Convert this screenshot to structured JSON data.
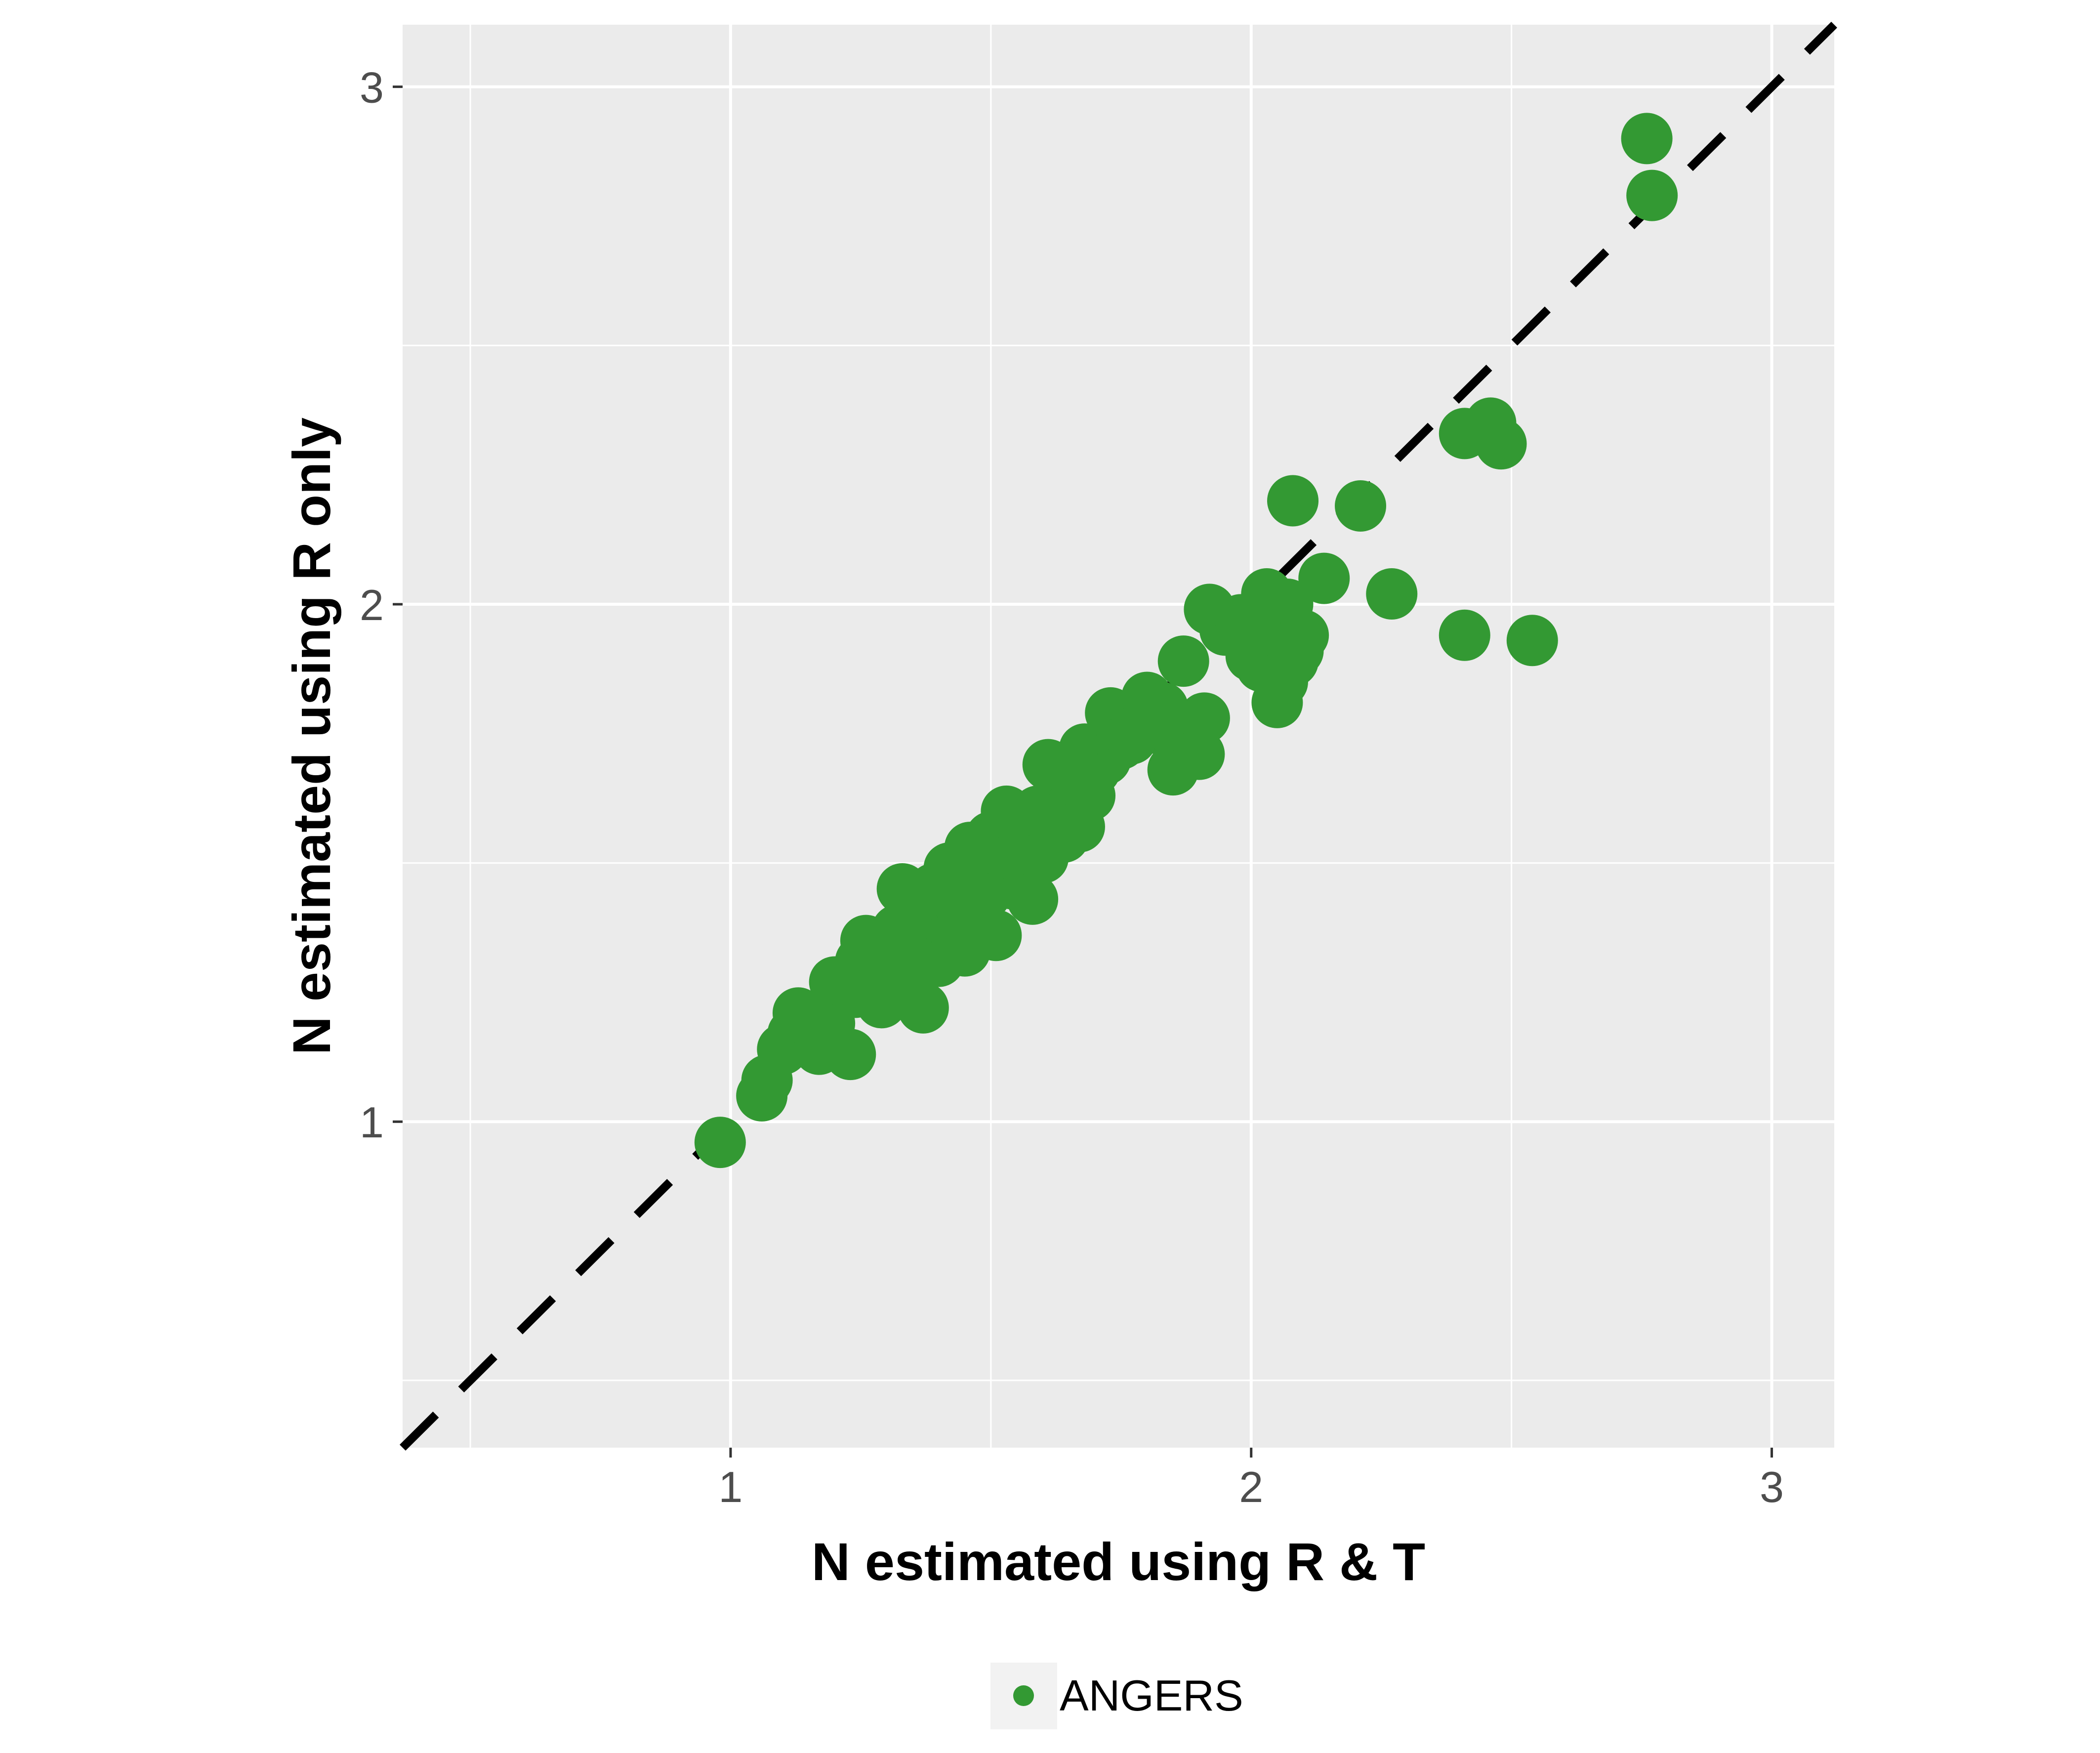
{
  "chart_data": {
    "type": "scatter",
    "title": "",
    "xlabel": "N estimated using R & T",
    "ylabel": "N estimated using R only",
    "xlim": [
      0.37,
      3.12
    ],
    "ylim": [
      0.37,
      3.12
    ],
    "x_ticks": [
      1,
      2,
      3
    ],
    "y_ticks": [
      1,
      2,
      3
    ],
    "grid": true,
    "reference_line": {
      "type": "identity",
      "style": "dashed",
      "color": "#000000"
    },
    "legend": {
      "position": "bottom",
      "entries": [
        "ANGERS"
      ]
    },
    "series": [
      {
        "name": "ANGERS",
        "color": "#339933",
        "points": [
          [
            0.98,
            0.96
          ],
          [
            1.06,
            1.05
          ],
          [
            1.07,
            1.08
          ],
          [
            1.1,
            1.14
          ],
          [
            1.12,
            1.17
          ],
          [
            1.13,
            1.21
          ],
          [
            1.17,
            1.14
          ],
          [
            1.19,
            1.19
          ],
          [
            1.2,
            1.27
          ],
          [
            1.23,
            1.13
          ],
          [
            1.24,
            1.25
          ],
          [
            1.25,
            1.31
          ],
          [
            1.26,
            1.35
          ],
          [
            1.28,
            1.29
          ],
          [
            1.29,
            1.23
          ],
          [
            1.3,
            1.33
          ],
          [
            1.31,
            1.27
          ],
          [
            1.32,
            1.37
          ],
          [
            1.33,
            1.45
          ],
          [
            1.34,
            1.3
          ],
          [
            1.35,
            1.4
          ],
          [
            1.36,
            1.44
          ],
          [
            1.37,
            1.22
          ],
          [
            1.38,
            1.35
          ],
          [
            1.39,
            1.45
          ],
          [
            1.4,
            1.31
          ],
          [
            1.41,
            1.39
          ],
          [
            1.42,
            1.49
          ],
          [
            1.43,
            1.37
          ],
          [
            1.44,
            1.42
          ],
          [
            1.45,
            1.33
          ],
          [
            1.46,
            1.53
          ],
          [
            1.47,
            1.4
          ],
          [
            1.48,
            1.47
          ],
          [
            1.49,
            1.44
          ],
          [
            1.5,
            1.55
          ],
          [
            1.51,
            1.36
          ],
          [
            1.52,
            1.49
          ],
          [
            1.53,
            1.6
          ],
          [
            1.54,
            1.46
          ],
          [
            1.55,
            1.53
          ],
          [
            1.56,
            1.57
          ],
          [
            1.57,
            1.49
          ],
          [
            1.58,
            1.43
          ],
          [
            1.59,
            1.6
          ],
          [
            1.6,
            1.51
          ],
          [
            1.61,
            1.69
          ],
          [
            1.62,
            1.57
          ],
          [
            1.63,
            1.64
          ],
          [
            1.64,
            1.55
          ],
          [
            1.66,
            1.62
          ],
          [
            1.67,
            1.57
          ],
          [
            1.68,
            1.72
          ],
          [
            1.69,
            1.63
          ],
          [
            1.7,
            1.68
          ],
          [
            1.72,
            1.7
          ],
          [
            1.73,
            1.79
          ],
          [
            1.75,
            1.73
          ],
          [
            1.77,
            1.74
          ],
          [
            1.78,
            1.78
          ],
          [
            1.8,
            1.82
          ],
          [
            1.82,
            1.76
          ],
          [
            1.83,
            1.8
          ],
          [
            1.85,
            1.68
          ],
          [
            1.86,
            1.74
          ],
          [
            1.87,
            1.89
          ],
          [
            1.88,
            1.73
          ],
          [
            1.9,
            1.71
          ],
          [
            1.91,
            1.78
          ],
          [
            1.92,
            1.99
          ],
          [
            1.95,
            1.95
          ],
          [
            1.98,
            1.97
          ],
          [
            2.0,
            1.9
          ],
          [
            2.02,
            1.88
          ],
          [
            2.03,
            2.02
          ],
          [
            2.04,
            1.95
          ],
          [
            2.05,
            1.81
          ],
          [
            2.06,
            1.85
          ],
          [
            2.07,
            2.0
          ],
          [
            2.08,
            2.2
          ],
          [
            2.08,
            1.89
          ],
          [
            2.09,
            1.91
          ],
          [
            2.1,
            1.94
          ],
          [
            2.14,
            2.05
          ],
          [
            2.21,
            2.19
          ],
          [
            2.27,
            2.02
          ],
          [
            2.41,
            1.94
          ],
          [
            2.41,
            2.33
          ],
          [
            2.46,
            2.35
          ],
          [
            2.48,
            2.31
          ],
          [
            2.54,
            1.93
          ],
          [
            2.76,
            2.9
          ],
          [
            2.77,
            2.79
          ]
        ]
      }
    ]
  }
}
